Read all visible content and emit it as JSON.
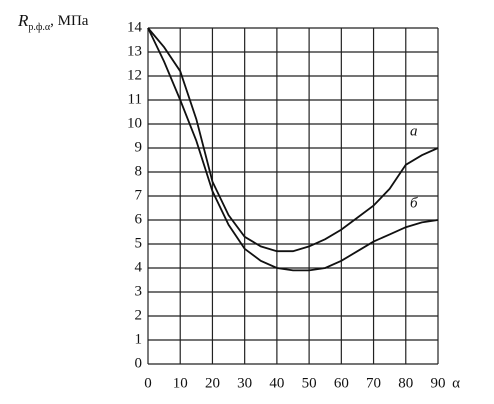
{
  "chart_data": {
    "type": "line",
    "y_label": {
      "symbol": "R",
      "subscript": "р.ф.α",
      "unit": ", МПа"
    },
    "x_label": "α",
    "x": [
      0,
      5,
      10,
      15,
      20,
      25,
      30,
      35,
      40,
      45,
      50,
      55,
      60,
      65,
      70,
      75,
      80,
      85,
      90
    ],
    "series": [
      {
        "name": "а",
        "color": "#111111",
        "values": [
          14,
          13.2,
          12.2,
          10.2,
          7.6,
          6.2,
          5.3,
          4.9,
          4.7,
          4.7,
          4.9,
          5.2,
          5.6,
          6.1,
          6.6,
          7.3,
          8.3,
          8.7,
          9
        ]
      },
      {
        "name": "б",
        "color": "#111111",
        "values": [
          14,
          12.6,
          11,
          9.3,
          7.2,
          5.8,
          4.8,
          4.3,
          4.0,
          3.9,
          3.9,
          4.0,
          4.3,
          4.7,
          5.1,
          5.4,
          5.7,
          5.9,
          6
        ]
      }
    ],
    "xlim": [
      0,
      90
    ],
    "ylim": [
      0,
      14
    ],
    "xticks": [
      0,
      10,
      20,
      30,
      40,
      50,
      60,
      70,
      80,
      90
    ],
    "yticks": [
      0,
      1,
      2,
      3,
      4,
      5,
      6,
      7,
      8,
      9,
      10,
      11,
      12,
      13,
      14
    ],
    "grid": true
  }
}
